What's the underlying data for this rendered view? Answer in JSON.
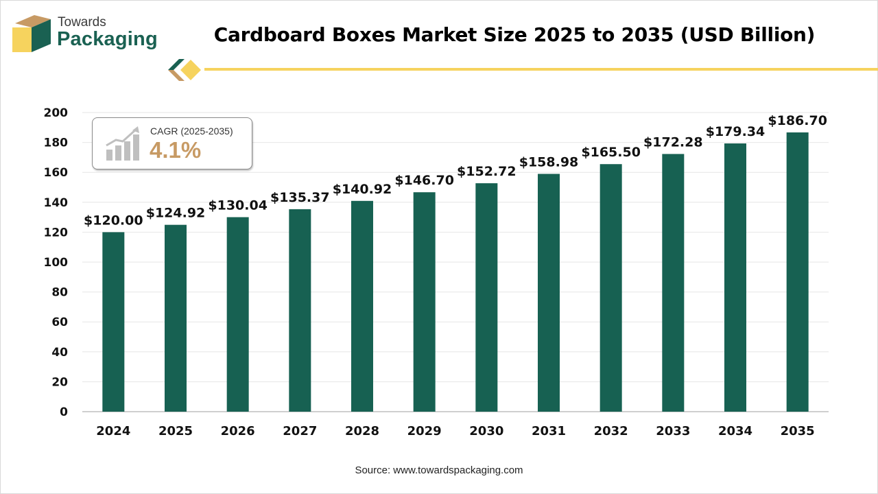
{
  "header": {
    "brand_line_1": "Towards",
    "brand_line_2": "Packaging",
    "title": "Cardboard Boxes Market Size 2025 to 2035 (USD Billion)"
  },
  "callout": {
    "label": "CAGR (2025-2035)",
    "value": "4.1%"
  },
  "footer": {
    "source": "Source: www.towardspackaging.com"
  },
  "colors": {
    "bar": "#176152",
    "accent_yellow": "#f6d35e",
    "accent_tan": "#c79a64",
    "logo_green": "#1a6152"
  },
  "chart_data": {
    "type": "bar",
    "title": "Cardboard Boxes Market Size 2025 to 2035 (USD Billion)",
    "categories": [
      "2024",
      "2025",
      "2026",
      "2027",
      "2028",
      "2029",
      "2030",
      "2031",
      "2032",
      "2033",
      "2034",
      "2035"
    ],
    "values": [
      120.0,
      124.92,
      130.04,
      135.37,
      140.92,
      146.7,
      152.72,
      158.98,
      165.5,
      172.28,
      179.34,
      186.7
    ],
    "data_labels": [
      "$120.00",
      "$124.92",
      "$130.04",
      "$135.37",
      "$140.92",
      "$146.70",
      "$152.72",
      "$158.98",
      "$165.50",
      "$172.28",
      "$179.34",
      "$186.70"
    ],
    "yticks": [
      "0",
      "20",
      "40",
      "60",
      "80",
      "100",
      "120",
      "140",
      "160",
      "180",
      "200"
    ],
    "ylim": [
      0,
      200
    ],
    "xlabel": "",
    "ylabel": "",
    "grid": true,
    "legend": "none"
  }
}
